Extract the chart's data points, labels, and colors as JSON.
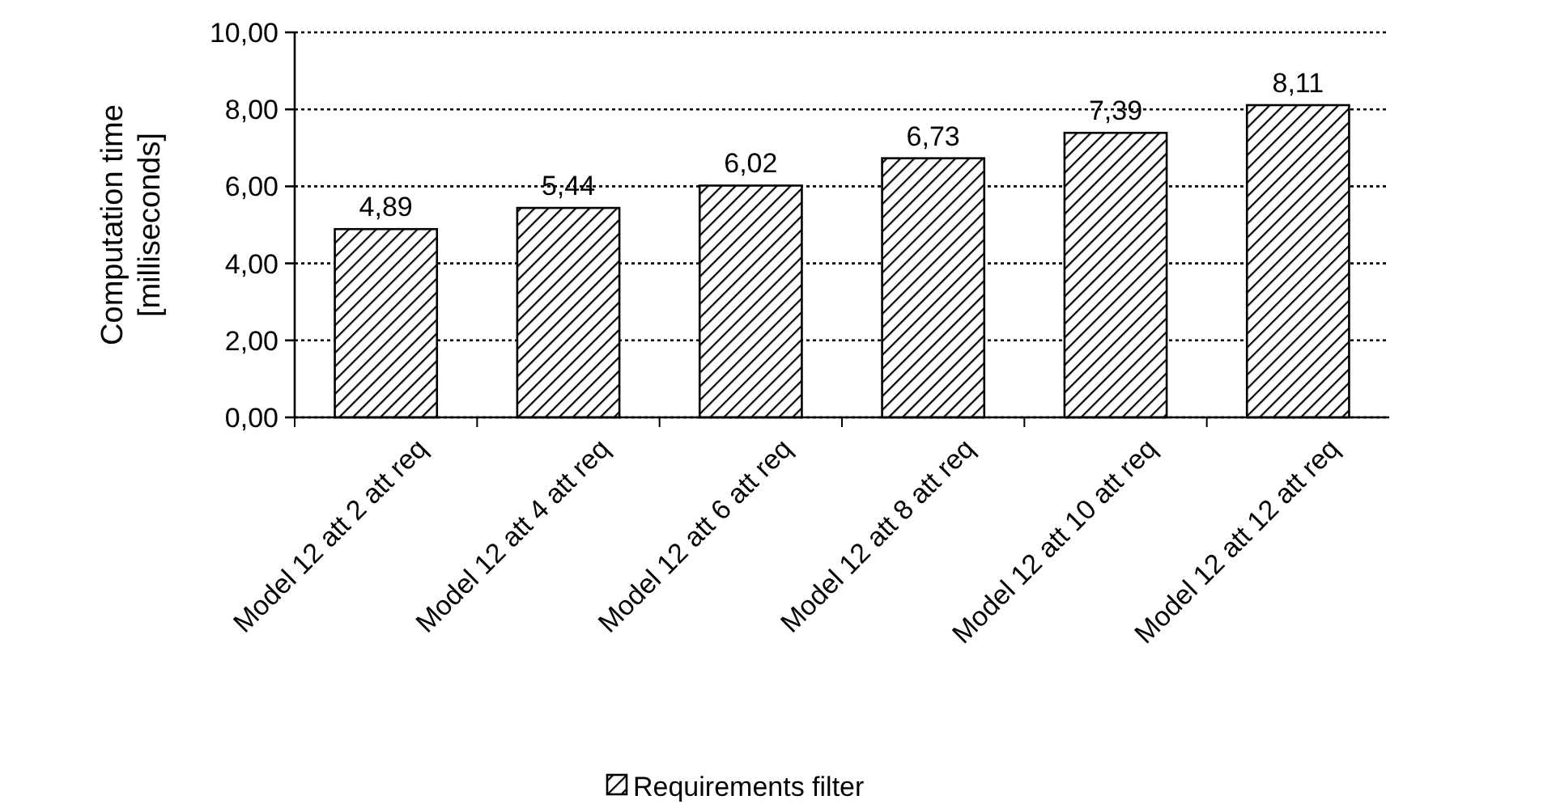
{
  "chart_data": {
    "type": "bar",
    "ylabel": "Computation time\n[milliseconds]",
    "categories": [
      "Model 12 att 2 att req",
      "Model 12 att 4 att req",
      "Model 12 att 6 att req",
      "Model 12 att 8 att req",
      "Model 12 att 10 att req",
      "Model 12 att 12 att req"
    ],
    "series": [
      {
        "name": "Requirements filter",
        "color": "#000000",
        "values": [
          4.89,
          5.44,
          6.02,
          6.73,
          7.39,
          8.11
        ],
        "value_labels": [
          "4,89",
          "5,44",
          "6,02",
          "6,73",
          "7,39",
          "8,11"
        ]
      }
    ],
    "ylim": [
      0,
      10
    ],
    "yticks": [
      {
        "value": 0,
        "label": "0,00"
      },
      {
        "value": 2,
        "label": "2,00"
      },
      {
        "value": 4,
        "label": "4,00"
      },
      {
        "value": 6,
        "label": "6,00"
      },
      {
        "value": 8,
        "label": "8,00"
      },
      {
        "value": 10,
        "label": "10,00"
      }
    ],
    "grid": "y",
    "legend": "bottom"
  }
}
